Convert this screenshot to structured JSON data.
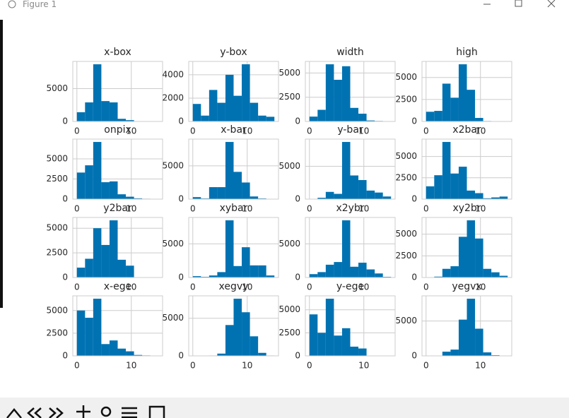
{
  "window": {
    "title": "Figure 1"
  },
  "chart_data": [
    {
      "type": "histogram",
      "title": "x-box",
      "bins": [
        0,
        1.5,
        3,
        4.5,
        6,
        7.5,
        9,
        10.5,
        12,
        13.5,
        15
      ],
      "counts": [
        1400,
        2900,
        8700,
        3100,
        2900,
        400,
        200,
        50,
        20,
        10
      ],
      "color": "#0072b2",
      "xlim": [
        -0.75,
        15.75
      ],
      "ylim": [
        0,
        9135
      ],
      "xticks": [
        0,
        10
      ],
      "yticks": [
        0,
        5000
      ],
      "grid": true
    },
    {
      "type": "histogram",
      "title": "y-box",
      "bins": [
        0,
        1.5,
        3,
        4.5,
        6,
        7.5,
        9,
        10.5,
        12,
        13.5,
        15
      ],
      "counts": [
        1500,
        500,
        2700,
        1600,
        4000,
        2200,
        4900,
        1600,
        500,
        400
      ],
      "color": "#0072b2",
      "xlim": [
        -0.75,
        15.75
      ],
      "ylim": [
        0,
        5145
      ],
      "xticks": [
        0,
        10
      ],
      "yticks": [
        0,
        2000,
        4000
      ],
      "grid": true
    },
    {
      "type": "histogram",
      "title": "width",
      "bins": [
        0,
        1.5,
        3,
        4.5,
        6,
        7.5,
        9,
        10.5,
        12,
        13.5,
        15
      ],
      "counts": [
        500,
        1200,
        5900,
        4300,
        5700,
        1400,
        800,
        100,
        50,
        20
      ],
      "color": "#0072b2",
      "xlim": [
        -0.75,
        15.75
      ],
      "ylim": [
        0,
        6195
      ],
      "xticks": [
        0,
        10
      ],
      "yticks": [
        0,
        2500,
        5000
      ],
      "grid": true
    },
    {
      "type": "histogram",
      "title": "high",
      "bins": [
        0,
        1.5,
        3,
        4.5,
        6,
        7.5,
        9,
        10.5,
        12,
        13.5,
        15
      ],
      "counts": [
        1100,
        1200,
        4300,
        2700,
        6500,
        3600,
        400,
        50,
        20,
        10
      ],
      "color": "#0072b2",
      "xlim": [
        -0.75,
        15.75
      ],
      "ylim": [
        0,
        6825
      ],
      "xticks": [
        0,
        10
      ],
      "yticks": [
        0,
        2500,
        5000
      ],
      "grid": true
    },
    {
      "type": "histogram",
      "title": "onpix",
      "bins": [
        0,
        1.5,
        3,
        4.5,
        6,
        7.5,
        9,
        10.5,
        12,
        13.5,
        15
      ],
      "counts": [
        3300,
        4200,
        7100,
        2100,
        2200,
        600,
        300,
        100,
        50,
        20
      ],
      "color": "#0072b2",
      "xlim": [
        -0.75,
        15.75
      ],
      "ylim": [
        0,
        7455
      ],
      "xticks": [
        0,
        10
      ],
      "yticks": [
        0,
        2500,
        5000
      ],
      "grid": true
    },
    {
      "type": "histogram",
      "title": "x-bar",
      "bins": [
        0,
        1.5,
        3,
        4.5,
        6,
        7.5,
        9,
        10.5,
        12,
        13.5,
        15
      ],
      "counts": [
        300,
        100,
        1800,
        1800,
        8600,
        4100,
        2500,
        400,
        100,
        50
      ],
      "color": "#0072b2",
      "xlim": [
        -0.75,
        15.75
      ],
      "ylim": [
        0,
        9030
      ],
      "xticks": [
        0,
        10
      ],
      "yticks": [
        0,
        5000
      ],
      "grid": true
    },
    {
      "type": "histogram",
      "title": "y-bar",
      "bins": [
        0,
        1.5,
        3,
        4.5,
        6,
        7.5,
        9,
        10.5,
        12,
        13.5,
        15
      ],
      "counts": [
        0,
        200,
        1100,
        800,
        8700,
        3600,
        2900,
        1300,
        1000,
        400
      ],
      "color": "#0072b2",
      "xlim": [
        -0.75,
        15.75
      ],
      "ylim": [
        0,
        9135
      ],
      "xticks": [
        0,
        10
      ],
      "yticks": [
        0,
        5000
      ],
      "grid": true
    },
    {
      "type": "histogram",
      "title": "x2bar",
      "bins": [
        0,
        1.5,
        3,
        4.5,
        6,
        7.5,
        9,
        10.5,
        12,
        13.5,
        15
      ],
      "counts": [
        1500,
        2800,
        6700,
        3000,
        3800,
        1000,
        700,
        100,
        200,
        300
      ],
      "color": "#0072b2",
      "xlim": [
        -0.75,
        15.75
      ],
      "ylim": [
        0,
        7035
      ],
      "xticks": [
        0,
        10
      ],
      "yticks": [
        0,
        2500,
        5000
      ],
      "grid": true
    },
    {
      "type": "histogram",
      "title": "y2bar",
      "bins": [
        0,
        1.5,
        3,
        4.5,
        6,
        7.5,
        9,
        10.5,
        12,
        13.5,
        15
      ],
      "counts": [
        1000,
        1900,
        5000,
        3300,
        5800,
        1800,
        1200,
        0,
        0,
        0
      ],
      "color": "#0072b2",
      "xlim": [
        -0.75,
        15.75
      ],
      "ylim": [
        0,
        6090
      ],
      "xticks": [
        0,
        10
      ],
      "yticks": [
        0,
        2500,
        5000
      ],
      "grid": true
    },
    {
      "type": "histogram",
      "title": "xybar",
      "bins": [
        0,
        1.5,
        3,
        4.5,
        6,
        7.5,
        9,
        10.5,
        12,
        13.5,
        15
      ],
      "counts": [
        200,
        100,
        300,
        800,
        8500,
        1700,
        4500,
        1800,
        1800,
        300
      ],
      "color": "#0072b2",
      "xlim": [
        -0.75,
        15.75
      ],
      "ylim": [
        0,
        8925
      ],
      "xticks": [
        0,
        10
      ],
      "yticks": [
        0,
        5000
      ],
      "grid": true
    },
    {
      "type": "histogram",
      "title": "x2ybr",
      "bins": [
        0,
        1.5,
        3,
        4.5,
        6,
        7.5,
        9,
        10.5,
        12,
        13.5,
        15
      ],
      "counts": [
        500,
        800,
        1900,
        2300,
        8500,
        1600,
        2200,
        1200,
        600,
        100
      ],
      "color": "#0072b2",
      "xlim": [
        -0.75,
        15.75
      ],
      "ylim": [
        0,
        8925
      ],
      "xticks": [
        0,
        10
      ],
      "yticks": [
        0,
        5000
      ],
      "grid": true
    },
    {
      "type": "histogram",
      "title": "xy2br",
      "bins": [
        0,
        1.5,
        3,
        4.5,
        6,
        7.5,
        9,
        10.5,
        12,
        13.5,
        15
      ],
      "counts": [
        0,
        100,
        1000,
        1300,
        4700,
        6600,
        4500,
        1000,
        600,
        200
      ],
      "color": "#0072b2",
      "xlim": [
        -0.75,
        15.75
      ],
      "ylim": [
        0,
        6930
      ],
      "xticks": [
        0,
        10
      ],
      "yticks": [
        0,
        2500,
        5000
      ],
      "grid": true
    },
    {
      "type": "histogram",
      "title": "x-ege",
      "bins": [
        0,
        1.5,
        3,
        4.5,
        6,
        7.5,
        9,
        10.5,
        12,
        13.5,
        15
      ],
      "counts": [
        5000,
        4200,
        6300,
        1300,
        1700,
        800,
        500,
        100,
        50,
        20
      ],
      "color": "#0072b2",
      "xlim": [
        -0.75,
        15.75
      ],
      "ylim": [
        0,
        6615
      ],
      "xticks": [
        0,
        10
      ],
      "yticks": [
        0,
        2500,
        5000
      ],
      "grid": true
    },
    {
      "type": "histogram",
      "title": "xegvy",
      "bins": [
        0,
        1.5,
        3,
        4.5,
        6,
        7.5,
        9,
        10.5,
        12,
        13.5,
        15
      ],
      "counts": [
        0,
        0,
        50,
        300,
        4100,
        7600,
        5800,
        2600,
        400,
        50
      ],
      "color": "#0072b2",
      "xlim": [
        -0.75,
        15.75
      ],
      "ylim": [
        0,
        7980
      ],
      "xticks": [
        0,
        10
      ],
      "yticks": [
        0,
        5000
      ],
      "grid": true
    },
    {
      "type": "histogram",
      "title": "y-ege",
      "bins": [
        0,
        1.5,
        3,
        4.5,
        6,
        7.5,
        9,
        10.5,
        12,
        13.5,
        15
      ],
      "counts": [
        4500,
        2500,
        6200,
        2200,
        3000,
        1000,
        800,
        0,
        0,
        0
      ],
      "color": "#0072b2",
      "xlim": [
        -0.75,
        15.75
      ],
      "ylim": [
        0,
        6510
      ],
      "xticks": [
        0,
        10
      ],
      "yticks": [
        0,
        2500,
        5000
      ],
      "grid": true
    },
    {
      "type": "histogram",
      "title": "yegvx",
      "bins": [
        0,
        1.5,
        3,
        4.5,
        6,
        7.5,
        9,
        10.5,
        12,
        13.5,
        15
      ],
      "counts": [
        0,
        0,
        600,
        900,
        5200,
        8200,
        3900,
        500,
        100,
        0
      ],
      "color": "#0072b2",
      "xlim": [
        -0.75,
        15.75
      ],
      "ylim": [
        0,
        8610
      ],
      "xticks": [
        0,
        10
      ],
      "yticks": [
        0,
        5000
      ],
      "grid": true
    }
  ]
}
